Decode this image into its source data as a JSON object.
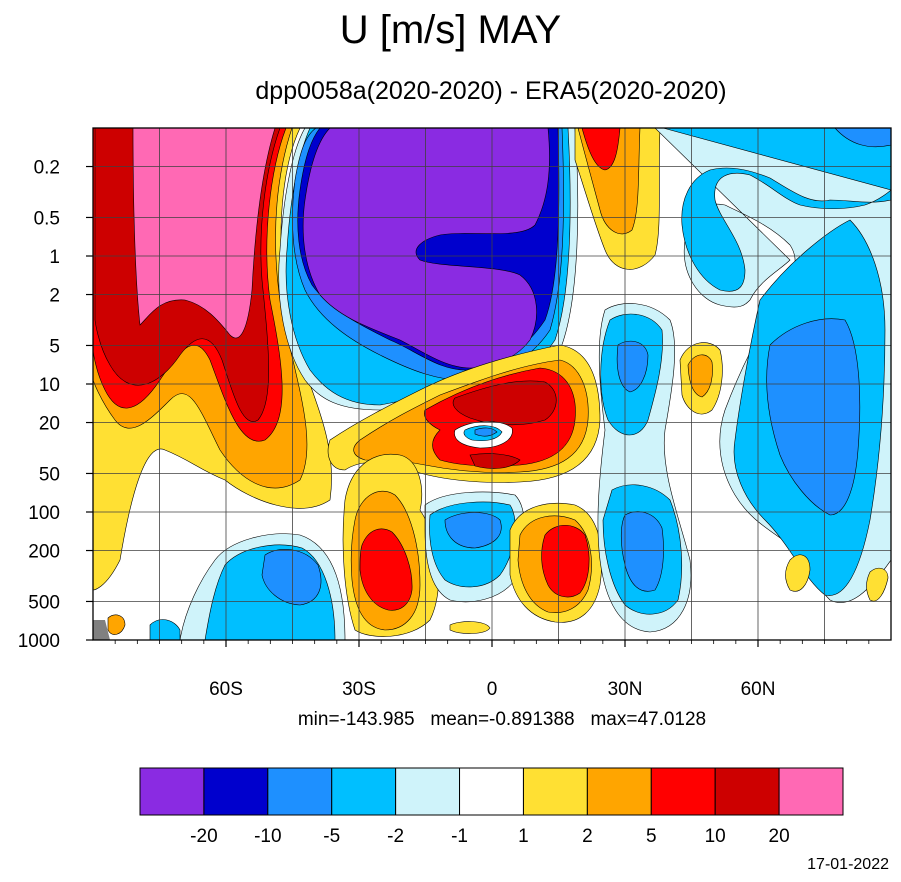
{
  "chart_data": {
    "type": "heatmap",
    "title": "U [m/s] MAY",
    "subtitle": "dpp0058a(2020-2020) - ERA5(2020-2020)",
    "stats": {
      "min": "-143.985",
      "mean": "-0.891388",
      "max": "47.0128"
    },
    "stats_text": "min=-143.985   mean=-0.891388   max=47.0128",
    "date": "17-01-2022",
    "x_axis": {
      "range": [
        -90,
        90
      ],
      "ticks": [
        {
          "value": -60,
          "label": "60S"
        },
        {
          "value": -30,
          "label": "30S"
        },
        {
          "value": 0,
          "label": "0"
        },
        {
          "value": 30,
          "label": "30N"
        },
        {
          "value": 60,
          "label": "60N"
        }
      ]
    },
    "y_axis": {
      "scale": "log",
      "reversed": true,
      "range": [
        1000,
        0.1
      ],
      "ticks": [
        0.2,
        0.5,
        1,
        2,
        5,
        10,
        20,
        50,
        100,
        200,
        500,
        1000
      ],
      "tick_labels": [
        "0.2",
        "0.5",
        "1",
        "2",
        "5",
        "10",
        "20",
        "50",
        "100",
        "200",
        "500",
        "1000"
      ]
    },
    "grid": true,
    "colorbar": {
      "levels": [
        "-20",
        "-10",
        "-5",
        "-2",
        "-1",
        "1",
        "2",
        "5",
        "10",
        "20"
      ],
      "colors": [
        "#8a2be2",
        "#0000cd",
        "#1e90ff",
        "#00bfff",
        "#cff3fa",
        "#ffffff",
        "#ffe033",
        "#ffa500",
        "#ff0000",
        "#cd0000",
        "#ff69b4"
      ]
    },
    "features": [
      {
        "lat": -60,
        "p": 0.5,
        "value": "> 20"
      },
      {
        "lat": -15,
        "p": 0.7,
        "value": "< -20"
      },
      {
        "lat": -5,
        "p": 15,
        "value": "10 to 20"
      },
      {
        "lat": -25,
        "p": 300,
        "value": "5 to 10"
      },
      {
        "lat": 17,
        "p": 200,
        "value": "5 to 10"
      },
      {
        "lat": -12,
        "p": 120,
        "value": "-5 to -2"
      },
      {
        "lat": 30,
        "p": 200,
        "value": "-10 to -5"
      },
      {
        "lat": 75,
        "p": 25,
        "value": "-5 to -2"
      }
    ]
  }
}
